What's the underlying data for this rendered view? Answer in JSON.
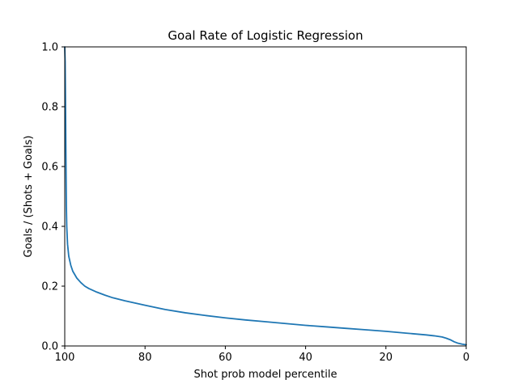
{
  "chart_data": {
    "type": "line",
    "title": "Goal Rate of Logistic Regression",
    "xlabel": "Shot prob model percentile",
    "ylabel": "Goals / (Shots + Goals)",
    "xlim": [
      100,
      0
    ],
    "ylim": [
      0.0,
      1.0
    ],
    "x_inverted": true,
    "grid": false,
    "x_ticks": [
      100,
      80,
      60,
      40,
      20,
      0
    ],
    "x_tick_labels": [
      "100",
      "80",
      "60",
      "40",
      "20",
      "0"
    ],
    "y_ticks": [
      0.0,
      0.2,
      0.4,
      0.6,
      0.8,
      1.0
    ],
    "y_tick_labels": [
      "0.0",
      "0.2",
      "0.4",
      "0.6",
      "0.8",
      "1.0"
    ],
    "series": [
      {
        "color": "#1f77b4",
        "x": [
          100,
          99.9,
          99.8,
          99.7,
          99.6,
          99.5,
          99.3,
          99.0,
          98.5,
          98.0,
          97.0,
          96.0,
          95.0,
          94.0,
          92.0,
          90.0,
          88.0,
          85.0,
          80.0,
          75.0,
          70.0,
          65.0,
          60.0,
          55.0,
          50.0,
          45.0,
          40.0,
          35.0,
          30.0,
          25.0,
          20.0,
          15.0,
          10.0,
          8.0,
          6.0,
          5.0,
          4.0,
          3.0,
          2.0,
          1.0,
          0.0
        ],
        "y": [
          1.0,
          0.95,
          0.8,
          0.62,
          0.47,
          0.4,
          0.34,
          0.3,
          0.27,
          0.25,
          0.227,
          0.212,
          0.2,
          0.192,
          0.18,
          0.17,
          0.161,
          0.151,
          0.136,
          0.122,
          0.111,
          0.102,
          0.094,
          0.087,
          0.081,
          0.075,
          0.069,
          0.064,
          0.059,
          0.054,
          0.049,
          0.043,
          0.037,
          0.034,
          0.03,
          0.026,
          0.021,
          0.014,
          0.009,
          0.006,
          0.004
        ]
      }
    ]
  }
}
